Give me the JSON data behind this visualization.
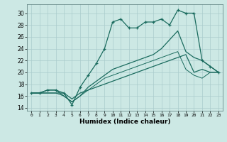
{
  "xlabel": "Humidex (Indice chaleur)",
  "bg_color": "#cce8e4",
  "grid_color": "#aacccc",
  "line_color": "#1a6b5e",
  "xlim": [
    -0.5,
    23.5
  ],
  "ylim": [
    13.5,
    31.5
  ],
  "xticks": [
    0,
    1,
    2,
    3,
    4,
    5,
    6,
    7,
    8,
    9,
    10,
    11,
    12,
    13,
    14,
    15,
    16,
    17,
    18,
    19,
    20,
    21,
    22,
    23
  ],
  "yticks": [
    14,
    16,
    18,
    20,
    22,
    24,
    26,
    28,
    30
  ],
  "series": [
    {
      "x": [
        0,
        1,
        2,
        3,
        4,
        5,
        6,
        7,
        8,
        9,
        10,
        11,
        12,
        13,
        14,
        15,
        16,
        17,
        18,
        19,
        20,
        21,
        22,
        23
      ],
      "y": [
        16.5,
        16.5,
        17.0,
        17.0,
        16.5,
        14.5,
        17.5,
        19.5,
        21.5,
        24.0,
        28.5,
        29.0,
        27.5,
        27.5,
        28.5,
        28.5,
        29.0,
        28.0,
        30.5,
        30.0,
        30.0,
        22.0,
        21.0,
        20.0
      ],
      "marker": "+",
      "linestyle": "-",
      "linewidth": 0.9,
      "markersize": 3.5
    },
    {
      "x": [
        0,
        1,
        2,
        3,
        4,
        5,
        6,
        7,
        8,
        9,
        10,
        11,
        12,
        13,
        14,
        15,
        16,
        17,
        18,
        19,
        20,
        21,
        22,
        23
      ],
      "y": [
        16.5,
        16.5,
        16.5,
        16.5,
        16.5,
        15.5,
        16.5,
        17.0,
        17.5,
        18.0,
        18.5,
        19.0,
        19.5,
        20.0,
        20.5,
        21.0,
        21.5,
        22.0,
        22.5,
        23.0,
        20.0,
        20.5,
        20.0,
        20.0
      ],
      "marker": null,
      "linestyle": "-",
      "linewidth": 0.9
    },
    {
      "x": [
        0,
        1,
        2,
        3,
        4,
        5,
        6,
        7,
        8,
        9,
        10,
        11,
        12,
        13,
        14,
        15,
        16,
        17,
        18,
        19,
        20,
        21,
        22,
        23
      ],
      "y": [
        16.5,
        16.5,
        17.0,
        17.0,
        16.0,
        15.0,
        16.0,
        17.5,
        18.5,
        19.5,
        20.5,
        21.0,
        21.5,
        22.0,
        22.5,
        23.0,
        24.0,
        25.5,
        27.0,
        23.5,
        22.5,
        22.0,
        21.0,
        20.0
      ],
      "marker": null,
      "linestyle": "-",
      "linewidth": 0.9
    },
    {
      "x": [
        0,
        1,
        2,
        3,
        4,
        5,
        6,
        7,
        8,
        9,
        10,
        11,
        12,
        13,
        14,
        15,
        16,
        17,
        18,
        19,
        20,
        21,
        22,
        23
      ],
      "y": [
        16.5,
        16.5,
        16.5,
        16.5,
        16.0,
        15.0,
        16.0,
        17.0,
        18.0,
        19.0,
        19.5,
        20.0,
        20.5,
        21.0,
        21.5,
        22.0,
        22.5,
        23.0,
        23.5,
        20.5,
        19.5,
        19.0,
        20.0,
        20.0
      ],
      "marker": null,
      "linestyle": "-",
      "linewidth": 0.7
    }
  ]
}
